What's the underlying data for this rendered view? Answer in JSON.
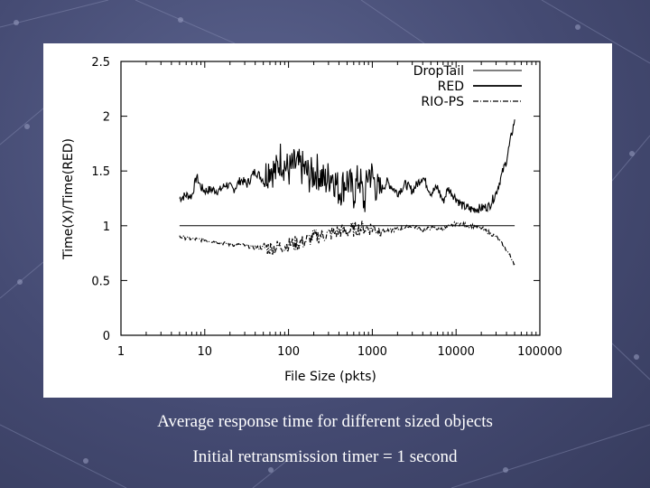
{
  "slide": {
    "caption_line1": "Average response time for different sized objects",
    "caption_line2": "Initial retransmission timer = 1 second",
    "background_color": "#454b73"
  },
  "chart_data": {
    "type": "line",
    "xlabel": "File Size (pkts)",
    "ylabel": "Time(X)/Time(RED)",
    "xscale": "log",
    "xlim": [
      1,
      100000
    ],
    "ylim": [
      0,
      2.5
    ],
    "x_ticks": [
      1,
      10,
      100,
      1000,
      10000,
      100000
    ],
    "x_tick_labels": [
      "1",
      "10",
      "100",
      "1000",
      "10000",
      "100000"
    ],
    "y_ticks": [
      0,
      0.5,
      1,
      1.5,
      2,
      2.5
    ],
    "y_tick_labels": [
      "0",
      "0.5",
      "1",
      "1.5",
      "2",
      "2.5"
    ],
    "grid": false,
    "legend_position": "top-right",
    "series": [
      {
        "name": "DropTail",
        "style": "noisy-high",
        "color": "#000000",
        "points": [
          [
            5,
            1.25
          ],
          [
            6,
            1.28
          ],
          [
            7,
            1.27
          ],
          [
            8,
            1.45
          ],
          [
            9,
            1.35
          ],
          [
            10,
            1.32
          ],
          [
            12,
            1.33
          ],
          [
            15,
            1.32
          ],
          [
            18,
            1.38
          ],
          [
            22,
            1.33
          ],
          [
            27,
            1.42
          ],
          [
            32,
            1.38
          ],
          [
            40,
            1.5
          ],
          [
            50,
            1.42
          ],
          [
            60,
            1.55
          ],
          [
            70,
            1.48
          ],
          [
            80,
            1.62
          ],
          [
            100,
            1.5
          ],
          [
            120,
            1.55
          ],
          [
            150,
            1.52
          ],
          [
            180,
            1.45
          ],
          [
            220,
            1.5
          ],
          [
            270,
            1.4
          ],
          [
            330,
            1.48
          ],
          [
            400,
            1.32
          ],
          [
            500,
            1.42
          ],
          [
            600,
            1.3
          ],
          [
            700,
            1.45
          ],
          [
            800,
            1.2
          ],
          [
            900,
            1.5
          ],
          [
            1000,
            1.45
          ],
          [
            1200,
            1.3
          ],
          [
            1500,
            1.4
          ],
          [
            2000,
            1.3
          ],
          [
            2500,
            1.38
          ],
          [
            3000,
            1.32
          ],
          [
            4000,
            1.45
          ],
          [
            5000,
            1.3
          ],
          [
            6000,
            1.35
          ],
          [
            7000,
            1.22
          ],
          [
            8000,
            1.34
          ],
          [
            10000,
            1.25
          ],
          [
            12000,
            1.18
          ],
          [
            15000,
            1.15
          ],
          [
            20000,
            1.16
          ],
          [
            25000,
            1.18
          ],
          [
            30000,
            1.3
          ],
          [
            40000,
            1.6
          ],
          [
            50000,
            1.97
          ]
        ]
      },
      {
        "name": "RED",
        "style": "flat",
        "color": "#000000",
        "points": [
          [
            5,
            1.0
          ],
          [
            50000,
            1.0
          ]
        ]
      },
      {
        "name": "RIO-PS",
        "style": "noisy-low",
        "color": "#000000",
        "points": [
          [
            5,
            0.9
          ],
          [
            7,
            0.88
          ],
          [
            10,
            0.87
          ],
          [
            15,
            0.85
          ],
          [
            20,
            0.83
          ],
          [
            30,
            0.82
          ],
          [
            40,
            0.8
          ],
          [
            50,
            0.8
          ],
          [
            70,
            0.8
          ],
          [
            100,
            0.83
          ],
          [
            150,
            0.85
          ],
          [
            200,
            0.9
          ],
          [
            300,
            0.92
          ],
          [
            400,
            0.95
          ],
          [
            500,
            0.95
          ],
          [
            700,
            0.98
          ],
          [
            1000,
            0.98
          ],
          [
            1500,
            0.95
          ],
          [
            2000,
            0.97
          ],
          [
            3000,
            1.0
          ],
          [
            4000,
            0.96
          ],
          [
            5000,
            0.98
          ],
          [
            7000,
            0.97
          ],
          [
            10000,
            1.02
          ],
          [
            15000,
            1.0
          ],
          [
            20000,
            0.98
          ],
          [
            30000,
            0.9
          ],
          [
            40000,
            0.78
          ],
          [
            50000,
            0.65
          ]
        ]
      }
    ]
  }
}
